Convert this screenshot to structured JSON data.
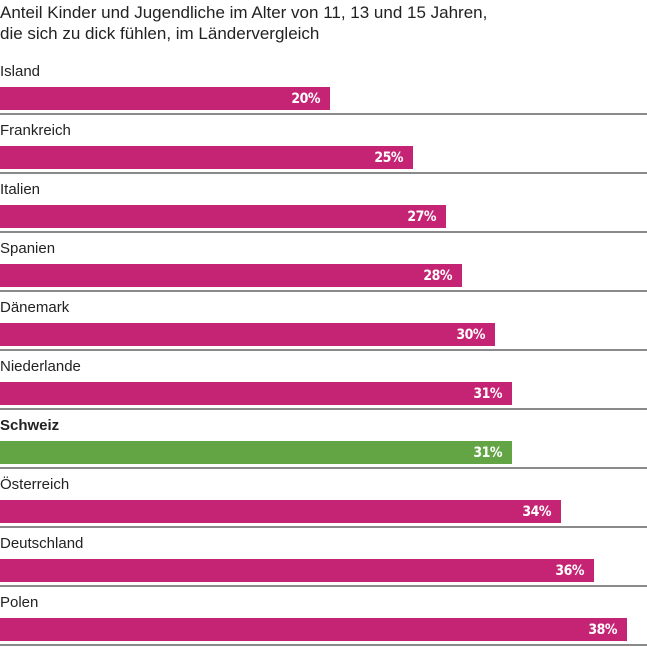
{
  "chart_data": {
    "type": "bar",
    "orientation": "horizontal",
    "title": "Anteil Kinder und Jugendliche im Alter  von 11, 13 und 15 Jahren,",
    "subtitle": "die sich zu dick fühlen, im Ländervergleich",
    "categories": [
      "Island",
      "Frankreich",
      "Italien",
      "Spanien",
      "Dänemark",
      "Niederlande",
      "Schweiz",
      "Österreich",
      "Deutschland",
      "Polen"
    ],
    "values": [
      20,
      25,
      27,
      28,
      30,
      31,
      31,
      34,
      36,
      38
    ],
    "value_labels": [
      "20%",
      "25%",
      "27%",
      "28%",
      "30%",
      "31%",
      "31%",
      "34%",
      "36%",
      "38%"
    ],
    "unit": "%",
    "highlight": "Schweiz",
    "xlim": [
      0,
      39.2
    ],
    "grid": false,
    "colors": {
      "bar": "#c52373",
      "highlight": "#63a545",
      "divider": "#8a8a8a",
      "text": "#222222"
    }
  }
}
